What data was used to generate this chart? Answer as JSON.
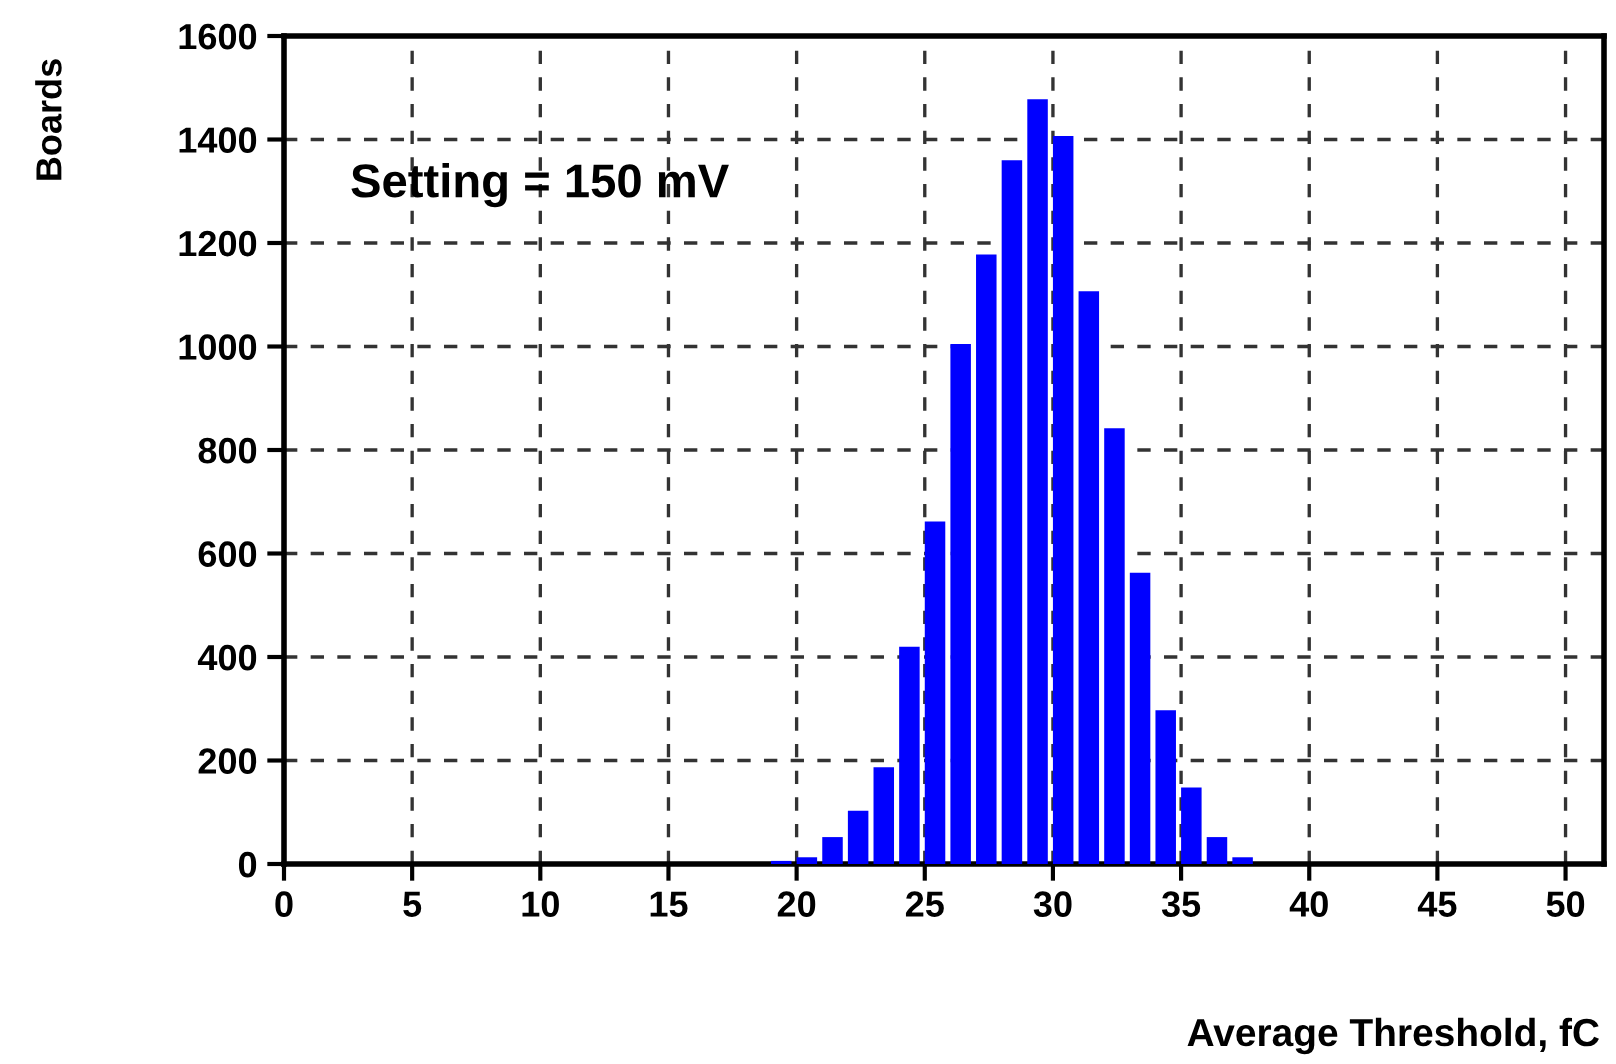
{
  "chart_data": {
    "type": "histogram",
    "xlabel": "Average Threshold, fC",
    "ylabel": "Boards",
    "annotations": [
      "Setting = 150 mV"
    ],
    "bins": [
      19,
      20,
      21,
      22,
      23,
      24,
      25,
      26,
      27,
      28,
      29,
      30,
      31,
      32,
      33,
      34,
      35,
      36,
      37,
      38
    ],
    "values": [
      6,
      13,
      52,
      103,
      187,
      420,
      662,
      1005,
      1178,
      1360,
      1478,
      1407,
      1107,
      842,
      563,
      297,
      148,
      52,
      13
    ],
    "color": "#0000ff",
    "xlim": [
      0,
      51.5
    ],
    "ylim": [
      0,
      1600
    ],
    "xticks": [
      0,
      5,
      10,
      15,
      20,
      25,
      30,
      35,
      40,
      45,
      50
    ],
    "yticks": [
      0,
      200,
      400,
      600,
      800,
      1000,
      1200,
      1400,
      1600
    ],
    "grid": true
  }
}
